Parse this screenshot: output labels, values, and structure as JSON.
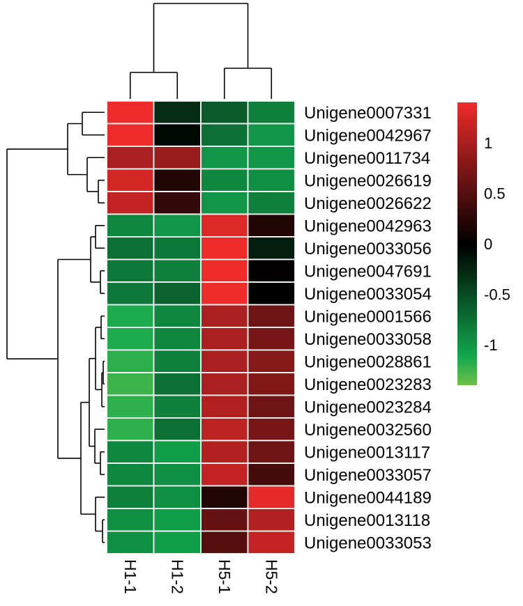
{
  "chart_data": {
    "type": "heatmap",
    "title": "",
    "xlabel": "",
    "ylabel": "",
    "columns": [
      "H1-1",
      "H1-2",
      "H5-1",
      "H5-2"
    ],
    "rows": [
      "Unigene0007331",
      "Unigene0042967",
      "Unigene0011734",
      "Unigene0026619",
      "Unigene0026622",
      "Unigene0042963",
      "Unigene0033056",
      "Unigene0047691",
      "Unigene0033054",
      "Unigene0001566",
      "Unigene0033058",
      "Unigene0028861",
      "Unigene0023283",
      "Unigene0023284",
      "Unigene0032560",
      "Unigene0013117",
      "Unigene0033057",
      "Unigene0044189",
      "Unigene0013118",
      "Unigene0033053"
    ],
    "values": [
      [
        1.4,
        -0.3,
        -0.6,
        -0.85
      ],
      [
        1.45,
        -0.05,
        -0.75,
        -1.0
      ],
      [
        1.0,
        0.9,
        -1.0,
        -1.0
      ],
      [
        1.25,
        0.2,
        -0.9,
        -0.95
      ],
      [
        1.15,
        0.3,
        -1.0,
        -0.85
      ],
      [
        -0.9,
        -1.0,
        1.3,
        0.2
      ],
      [
        -0.75,
        -0.8,
        1.45,
        -0.2
      ],
      [
        -0.8,
        -0.85,
        1.5,
        0.02
      ],
      [
        -0.8,
        -0.65,
        1.5,
        0.0
      ],
      [
        -1.15,
        -0.9,
        1.0,
        0.65
      ],
      [
        -1.15,
        -0.9,
        1.0,
        0.7
      ],
      [
        -1.2,
        -0.85,
        1.0,
        0.8
      ],
      [
        -1.25,
        -0.75,
        1.0,
        0.75
      ],
      [
        -1.2,
        -0.85,
        1.05,
        0.65
      ],
      [
        -1.2,
        -0.75,
        1.1,
        0.7
      ],
      [
        -0.9,
        -1.05,
        1.05,
        0.65
      ],
      [
        -0.9,
        -0.95,
        1.15,
        0.4
      ],
      [
        -0.85,
        -0.95,
        0.2,
        1.35
      ],
      [
        -0.95,
        -1.05,
        0.6,
        1.05
      ],
      [
        -0.95,
        -1.05,
        0.5,
        1.15
      ]
    ],
    "color_scale": {
      "min": -1.4,
      "max": 1.4,
      "low_color": "#6fc047",
      "mid_low_color": "#12a84e",
      "mid_color": "#000000",
      "high_color": "#ee2b2b",
      "ticks": [
        1,
        0.5,
        0,
        -0.5,
        -1
      ],
      "tick_labels": [
        "1",
        "0.5",
        "0",
        "-0.5",
        "-1"
      ]
    },
    "row_dendrogram": "left",
    "column_dendrogram": "top",
    "legend_placement": "right",
    "grid": true
  }
}
